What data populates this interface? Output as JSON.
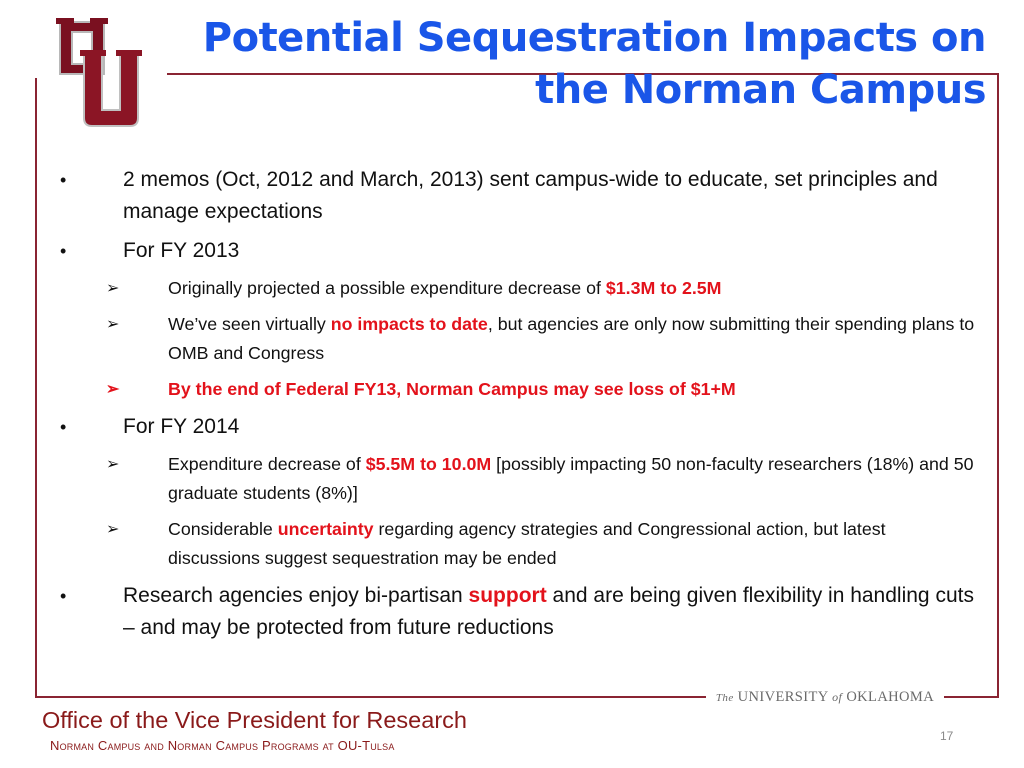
{
  "slide": {
    "title": "Potential Sequestration Impacts on the Norman Campus",
    "logo": "ou-interlocking-logo",
    "colors": {
      "title": "#1a56e8",
      "accent_red": "#e3121b",
      "crimson": "#8a2432"
    }
  },
  "bullets": [
    {
      "text": "2 memos (Oct, 2012 and March, 2013) sent campus-wide to educate, set principles and manage expectations"
    },
    {
      "text": "For FY 2013"
    },
    {
      "before": "Originally projected a possible expenditure decrease of ",
      "highlight": "$1.3M to 2.5M"
    },
    {
      "before": "We’ve seen virtually ",
      "highlight": "no impacts to date",
      "after": ", but agencies are only now submitting their spending plans to OMB and Congress"
    },
    {
      "text": "By the end of Federal FY13, Norman Campus may see loss of $1+M"
    },
    {
      "text": "For FY 2014"
    },
    {
      "before": "Expenditure decrease of ",
      "highlight": "$5.5M to 10.0M",
      "after": " [possibly impacting 50 non-faculty researchers (18%) and 50 graduate students (8%)]"
    },
    {
      "before": "Considerable ",
      "highlight": "uncertainty",
      "after": " regarding agency strategies and Congressional action, but latest discussions suggest sequestration may be ended"
    },
    {
      "before": "Research agencies enjoy bi-partisan ",
      "highlight": "support",
      "after": " and are being given flexibility in handling cuts – and may be protected from future reductions"
    }
  ],
  "symbols": {
    "bullet": "•",
    "arrow": "➢"
  },
  "banner": {
    "the": "The",
    "university": "UNIVERSITY",
    "of": "of",
    "state": "OKLAHOMA"
  },
  "footer": {
    "title": "Office of the Vice President for Research",
    "subtitle": "Norman Campus and Norman Campus Programs at OU-Tulsa",
    "page": "17"
  }
}
